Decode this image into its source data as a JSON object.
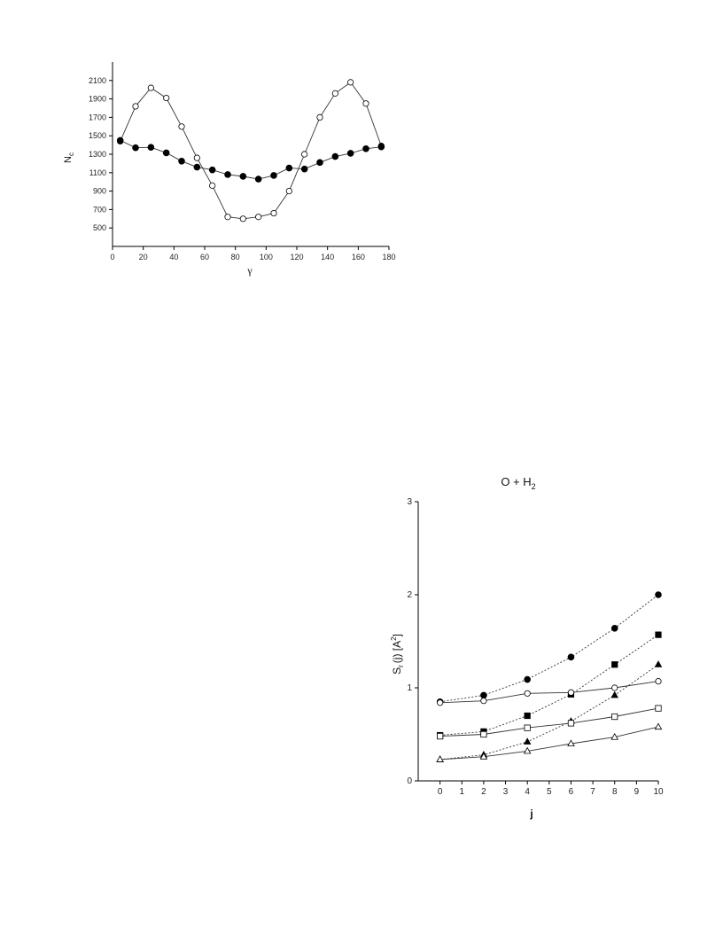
{
  "chart_data": [
    {
      "type": "line",
      "ylabel": "N",
      "ylabel_sub": "c",
      "xlabel": "γ",
      "xlim": [
        0,
        180
      ],
      "ylim": [
        300,
        2300
      ],
      "xticks": [
        "0",
        "20",
        "40",
        "60",
        "80",
        "100",
        "120",
        "140",
        "160",
        "180"
      ],
      "yticks": [
        "500",
        "700",
        "900",
        "1100",
        "1300",
        "1500",
        "1700",
        "1900",
        "2100"
      ],
      "x": [
        5,
        15,
        25,
        35,
        45,
        55,
        65,
        75,
        85,
        95,
        105,
        115,
        125,
        135,
        145,
        155,
        165,
        175
      ],
      "series": [
        {
          "marker": "open-circle",
          "values": [
            1440,
            1820,
            2020,
            1910,
            1600,
            1260,
            960,
            620,
            600,
            620,
            660,
            900,
            1300,
            1700,
            1960,
            2080,
            1850,
            1390
          ]
        },
        {
          "marker": "filled-circle",
          "values": [
            1450,
            1370,
            1375,
            1315,
            1225,
            1160,
            1130,
            1080,
            1060,
            1030,
            1070,
            1150,
            1140,
            1210,
            1275,
            1310,
            1360,
            1380
          ]
        }
      ],
      "grid": false
    },
    {
      "type": "line",
      "title": "O + H",
      "title_sub": "2",
      "ylabel": "S",
      "ylabel_sub": "r",
      "ylabel_rest": "(j) [A",
      "ylabel_sup": "2",
      "ylabel_end": "]",
      "xlabel": "j",
      "xlim": [
        -1,
        10
      ],
      "ylim": [
        0,
        3
      ],
      "xticks": [
        "0",
        "1",
        "2",
        "3",
        "4",
        "5",
        "6",
        "7",
        "8",
        "9",
        "10"
      ],
      "yticks": [
        "0",
        "1",
        "2",
        "3"
      ],
      "x": [
        0,
        2,
        4,
        6,
        8,
        10
      ],
      "series": [
        {
          "marker": "filled-circle",
          "line": "dotted",
          "values": [
            0.85,
            0.92,
            1.09,
            1.33,
            1.64,
            2.0
          ]
        },
        {
          "marker": "filled-square",
          "line": "dotted",
          "values": [
            0.49,
            0.53,
            0.7,
            0.93,
            1.25,
            1.57
          ]
        },
        {
          "marker": "filled-triangle",
          "line": "dotted",
          "values": [
            0.23,
            0.28,
            0.42,
            0.64,
            0.92,
            1.25
          ]
        },
        {
          "marker": "open-circle",
          "line": "solid",
          "values": [
            0.84,
            0.86,
            0.94,
            0.95,
            1.0,
            1.07
          ]
        },
        {
          "marker": "open-square",
          "line": "solid",
          "values": [
            0.48,
            0.5,
            0.57,
            0.62,
            0.69,
            0.78
          ]
        },
        {
          "marker": "open-triangle",
          "line": "solid",
          "values": [
            0.23,
            0.26,
            0.32,
            0.4,
            0.47,
            0.58
          ]
        }
      ],
      "grid": false
    }
  ]
}
